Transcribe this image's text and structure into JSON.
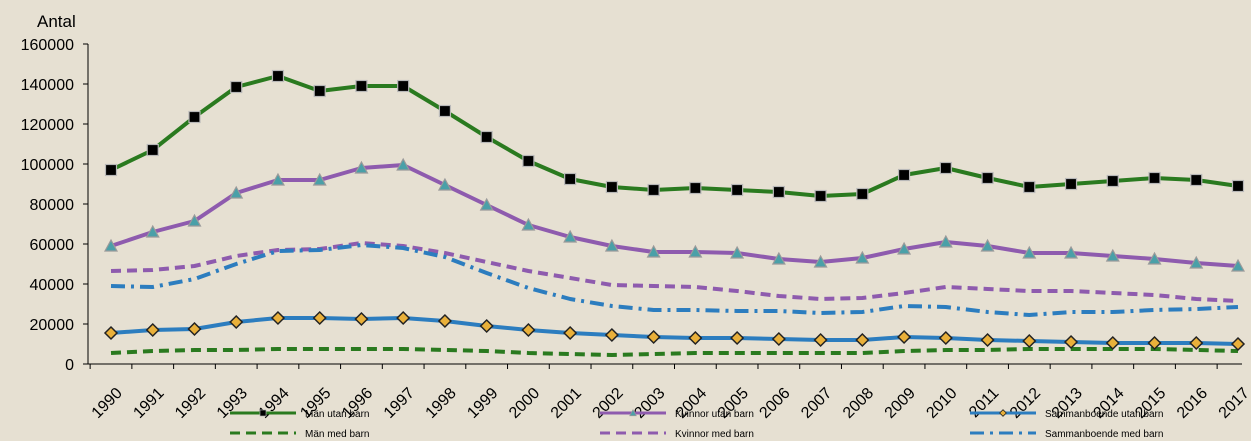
{
  "chart_data": {
    "type": "line",
    "ylabel": "Antal",
    "ylim": [
      0,
      160000
    ],
    "ytick_step": 20000,
    "yticks": [
      "0",
      "20000",
      "40000",
      "60000",
      "80000",
      "100000",
      "120000",
      "140000",
      "160000"
    ],
    "grid": false,
    "legend_position": "bottom",
    "x": [
      "1990",
      "1991",
      "1992",
      "1993",
      "1994",
      "1995",
      "1996",
      "1997",
      "1998",
      "1999",
      "2000",
      "2001",
      "2002",
      "2003",
      "2004",
      "2005",
      "2006",
      "2007",
      "2008",
      "2009",
      "2010",
      "2011",
      "2012",
      "2013",
      "2014",
      "2015",
      "2016",
      "2017"
    ],
    "series": [
      {
        "name": "Män utan barn",
        "color": "#2a7a1f",
        "style": "solid",
        "marker": "square",
        "values": [
          97000,
          107000,
          123500,
          138500,
          144000,
          136500,
          139000,
          139000,
          126500,
          113500,
          101500,
          92500,
          88500,
          87000,
          88000,
          87000,
          86000,
          84000,
          85000,
          94500,
          98000,
          93000,
          88500,
          90000,
          91500,
          93000,
          92000,
          89000
        ]
      },
      {
        "name": "Kvinnor utan barn",
        "color": "#8e5bae",
        "style": "solid",
        "marker": "triangle",
        "values": [
          59000,
          66000,
          71500,
          85500,
          92000,
          92000,
          98000,
          99500,
          89500,
          79500,
          69500,
          63500,
          59000,
          56000,
          56000,
          55500,
          52500,
          51000,
          53000,
          57500,
          61000,
          59000,
          55500,
          55500,
          54000,
          52500,
          50500,
          49000
        ]
      },
      {
        "name": "Sammanboende utan barn",
        "color": "#2c7dbf",
        "style": "solid",
        "marker": "diamond",
        "values": [
          15500,
          17000,
          17500,
          21000,
          23000,
          23000,
          22500,
          23000,
          21500,
          19000,
          17000,
          15500,
          14500,
          13500,
          13000,
          13000,
          12500,
          12000,
          12000,
          13500,
          13000,
          12000,
          11500,
          11000,
          10500,
          10500,
          10500,
          10000
        ]
      },
      {
        "name": "Män med barn",
        "color": "#2a7a1f",
        "style": "dash",
        "marker": "none",
        "values": [
          5500,
          6500,
          7000,
          7000,
          7500,
          7500,
          7500,
          7500,
          7000,
          6500,
          5500,
          5000,
          4500,
          5000,
          5500,
          5500,
          5500,
          5500,
          5500,
          6500,
          7000,
          7000,
          7500,
          7500,
          7500,
          7500,
          7000,
          6500
        ]
      },
      {
        "name": "Kvinnor med barn",
        "color": "#8e5bae",
        "style": "dash",
        "marker": "none",
        "values": [
          46500,
          47000,
          49000,
          54000,
          57000,
          57500,
          60500,
          59000,
          55500,
          51000,
          46500,
          43000,
          39500,
          39000,
          38500,
          36500,
          34000,
          32500,
          33000,
          35500,
          38500,
          37500,
          36500,
          36500,
          35500,
          34500,
          32500,
          31500
        ]
      },
      {
        "name": "Sammanboende med barn",
        "color": "#2c7dbf",
        "style": "dashdot",
        "marker": "none",
        "values": [
          39000,
          38500,
          42500,
          50000,
          56500,
          57000,
          59500,
          58000,
          53500,
          45500,
          38000,
          32500,
          29000,
          27000,
          27000,
          26500,
          26500,
          25500,
          26000,
          29000,
          28500,
          26000,
          24500,
          26000,
          26000,
          27000,
          27500,
          28500
        ]
      }
    ]
  }
}
